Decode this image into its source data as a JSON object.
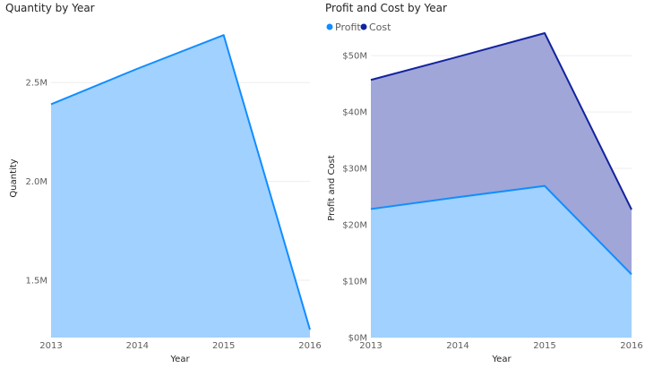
{
  "chart_data": [
    {
      "type": "area",
      "title": "Quantity by Year",
      "xlabel": "Year",
      "ylabel": "Quantity",
      "categories": [
        "2013",
        "2014",
        "2015",
        "2016"
      ],
      "yticks": [
        "1.5M",
        "2.0M",
        "2.5M"
      ],
      "ylim": [
        1.21,
        2.75
      ],
      "grid": true,
      "legend": null,
      "series": [
        {
          "name": "Quantity",
          "values": [
            2.39,
            2.57,
            2.74,
            1.25
          ],
          "color": "#118dff"
        }
      ]
    },
    {
      "type": "area",
      "title": "Profit and Cost by Year",
      "xlabel": "Year",
      "ylabel": "Profit and Cost",
      "categories": [
        "2013",
        "2014",
        "2015",
        "2016"
      ],
      "yticks": [
        "$0M",
        "$10M",
        "$20M",
        "$30M",
        "$40M",
        "$50M"
      ],
      "ylim": [
        0,
        54
      ],
      "grid": true,
      "legend": "top-left",
      "series": [
        {
          "name": "Profit",
          "values": [
            22.8,
            24.9,
            26.9,
            11.2
          ],
          "color": "#118dff"
        },
        {
          "name": "Cost",
          "values": [
            45.7,
            49.8,
            54.0,
            22.7
          ],
          "color": "#12239e"
        }
      ]
    }
  ]
}
